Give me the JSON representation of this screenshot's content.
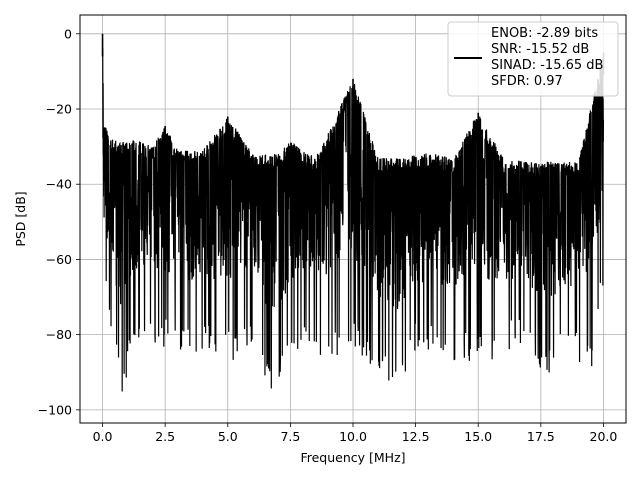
{
  "chart_data": {
    "type": "line",
    "xlabel": "Frequency [MHz]",
    "ylabel": "PSD [dB]",
    "xlim": [
      -0.9,
      20.9
    ],
    "ylim": [
      -103.5,
      5
    ],
    "xticks": [
      0.0,
      2.5,
      5.0,
      7.5,
      10.0,
      12.5,
      15.0,
      17.5,
      20.0
    ],
    "xtick_labels": [
      "0.0",
      "2.5",
      "5.0",
      "7.5",
      "10.0",
      "12.5",
      "15.0",
      "17.5",
      "20.0"
    ],
    "yticks": [
      0,
      -20,
      -40,
      -60,
      -80,
      -100
    ],
    "ytick_labels": [
      "0",
      "−20",
      "−40",
      "−60",
      "−80",
      "−100"
    ],
    "grid": true,
    "line_color": "#000000",
    "legend": {
      "placement": "top-right",
      "entries": [
        "ENOB: -2.89 bits",
        "SNR: -15.52 dB",
        "SINAD: -15.65 dB",
        "SFDR: 0.97"
      ]
    },
    "series": [
      {
        "envelope_max": [
          [
            0.0,
            0.0
          ],
          [
            0.05,
            -22
          ],
          [
            0.3,
            -28
          ],
          [
            1.0,
            -29
          ],
          [
            1.3,
            -28
          ],
          [
            2.0,
            -30
          ],
          [
            2.5,
            -24.5
          ],
          [
            3.0,
            -31
          ],
          [
            4.0,
            -31
          ],
          [
            5.0,
            -22
          ],
          [
            6.0,
            -32
          ],
          [
            7.0,
            -32
          ],
          [
            7.5,
            -28.5
          ],
          [
            8.5,
            -33
          ],
          [
            10.0,
            -12
          ],
          [
            11.0,
            -33
          ],
          [
            12.0,
            -33
          ],
          [
            13.0,
            -31.5
          ],
          [
            14.0,
            -33
          ],
          [
            15.0,
            -21
          ],
          [
            16.0,
            -33
          ],
          [
            17.0,
            -34
          ],
          [
            18.0,
            -34
          ],
          [
            19.0,
            -34
          ],
          [
            20.0,
            -5
          ]
        ],
        "envelope_min": [
          [
            0.0,
            -60
          ],
          [
            0.1,
            -68
          ],
          [
            0.7,
            -97
          ],
          [
            0.9,
            -93
          ],
          [
            1.5,
            -80
          ],
          [
            2.5,
            -84
          ],
          [
            4.0,
            -85
          ],
          [
            5.4,
            -88
          ],
          [
            6.0,
            -84
          ],
          [
            6.8,
            -98.5
          ],
          [
            8.0,
            -81
          ],
          [
            8.7,
            -87
          ],
          [
            10.0,
            -84
          ],
          [
            11.0,
            -90
          ],
          [
            11.6,
            -97.5
          ],
          [
            12.5,
            -84
          ],
          [
            14.0,
            -87
          ],
          [
            15.5,
            -87
          ],
          [
            16.3,
            -84
          ],
          [
            17.0,
            -84
          ],
          [
            17.7,
            -92
          ],
          [
            18.5,
            -84
          ],
          [
            19.5,
            -90
          ],
          [
            20.0,
            -68
          ]
        ],
        "band_level_db": -50,
        "spurs": [
          {
            "x": 0.0,
            "y": 0.0
          },
          {
            "x": 2.5,
            "y": -24.5
          },
          {
            "x": 5.0,
            "y": -22
          },
          {
            "x": 10.0,
            "y": -12
          },
          {
            "x": 15.0,
            "y": -21
          },
          {
            "x": 20.0,
            "y": -5
          }
        ]
      }
    ]
  }
}
